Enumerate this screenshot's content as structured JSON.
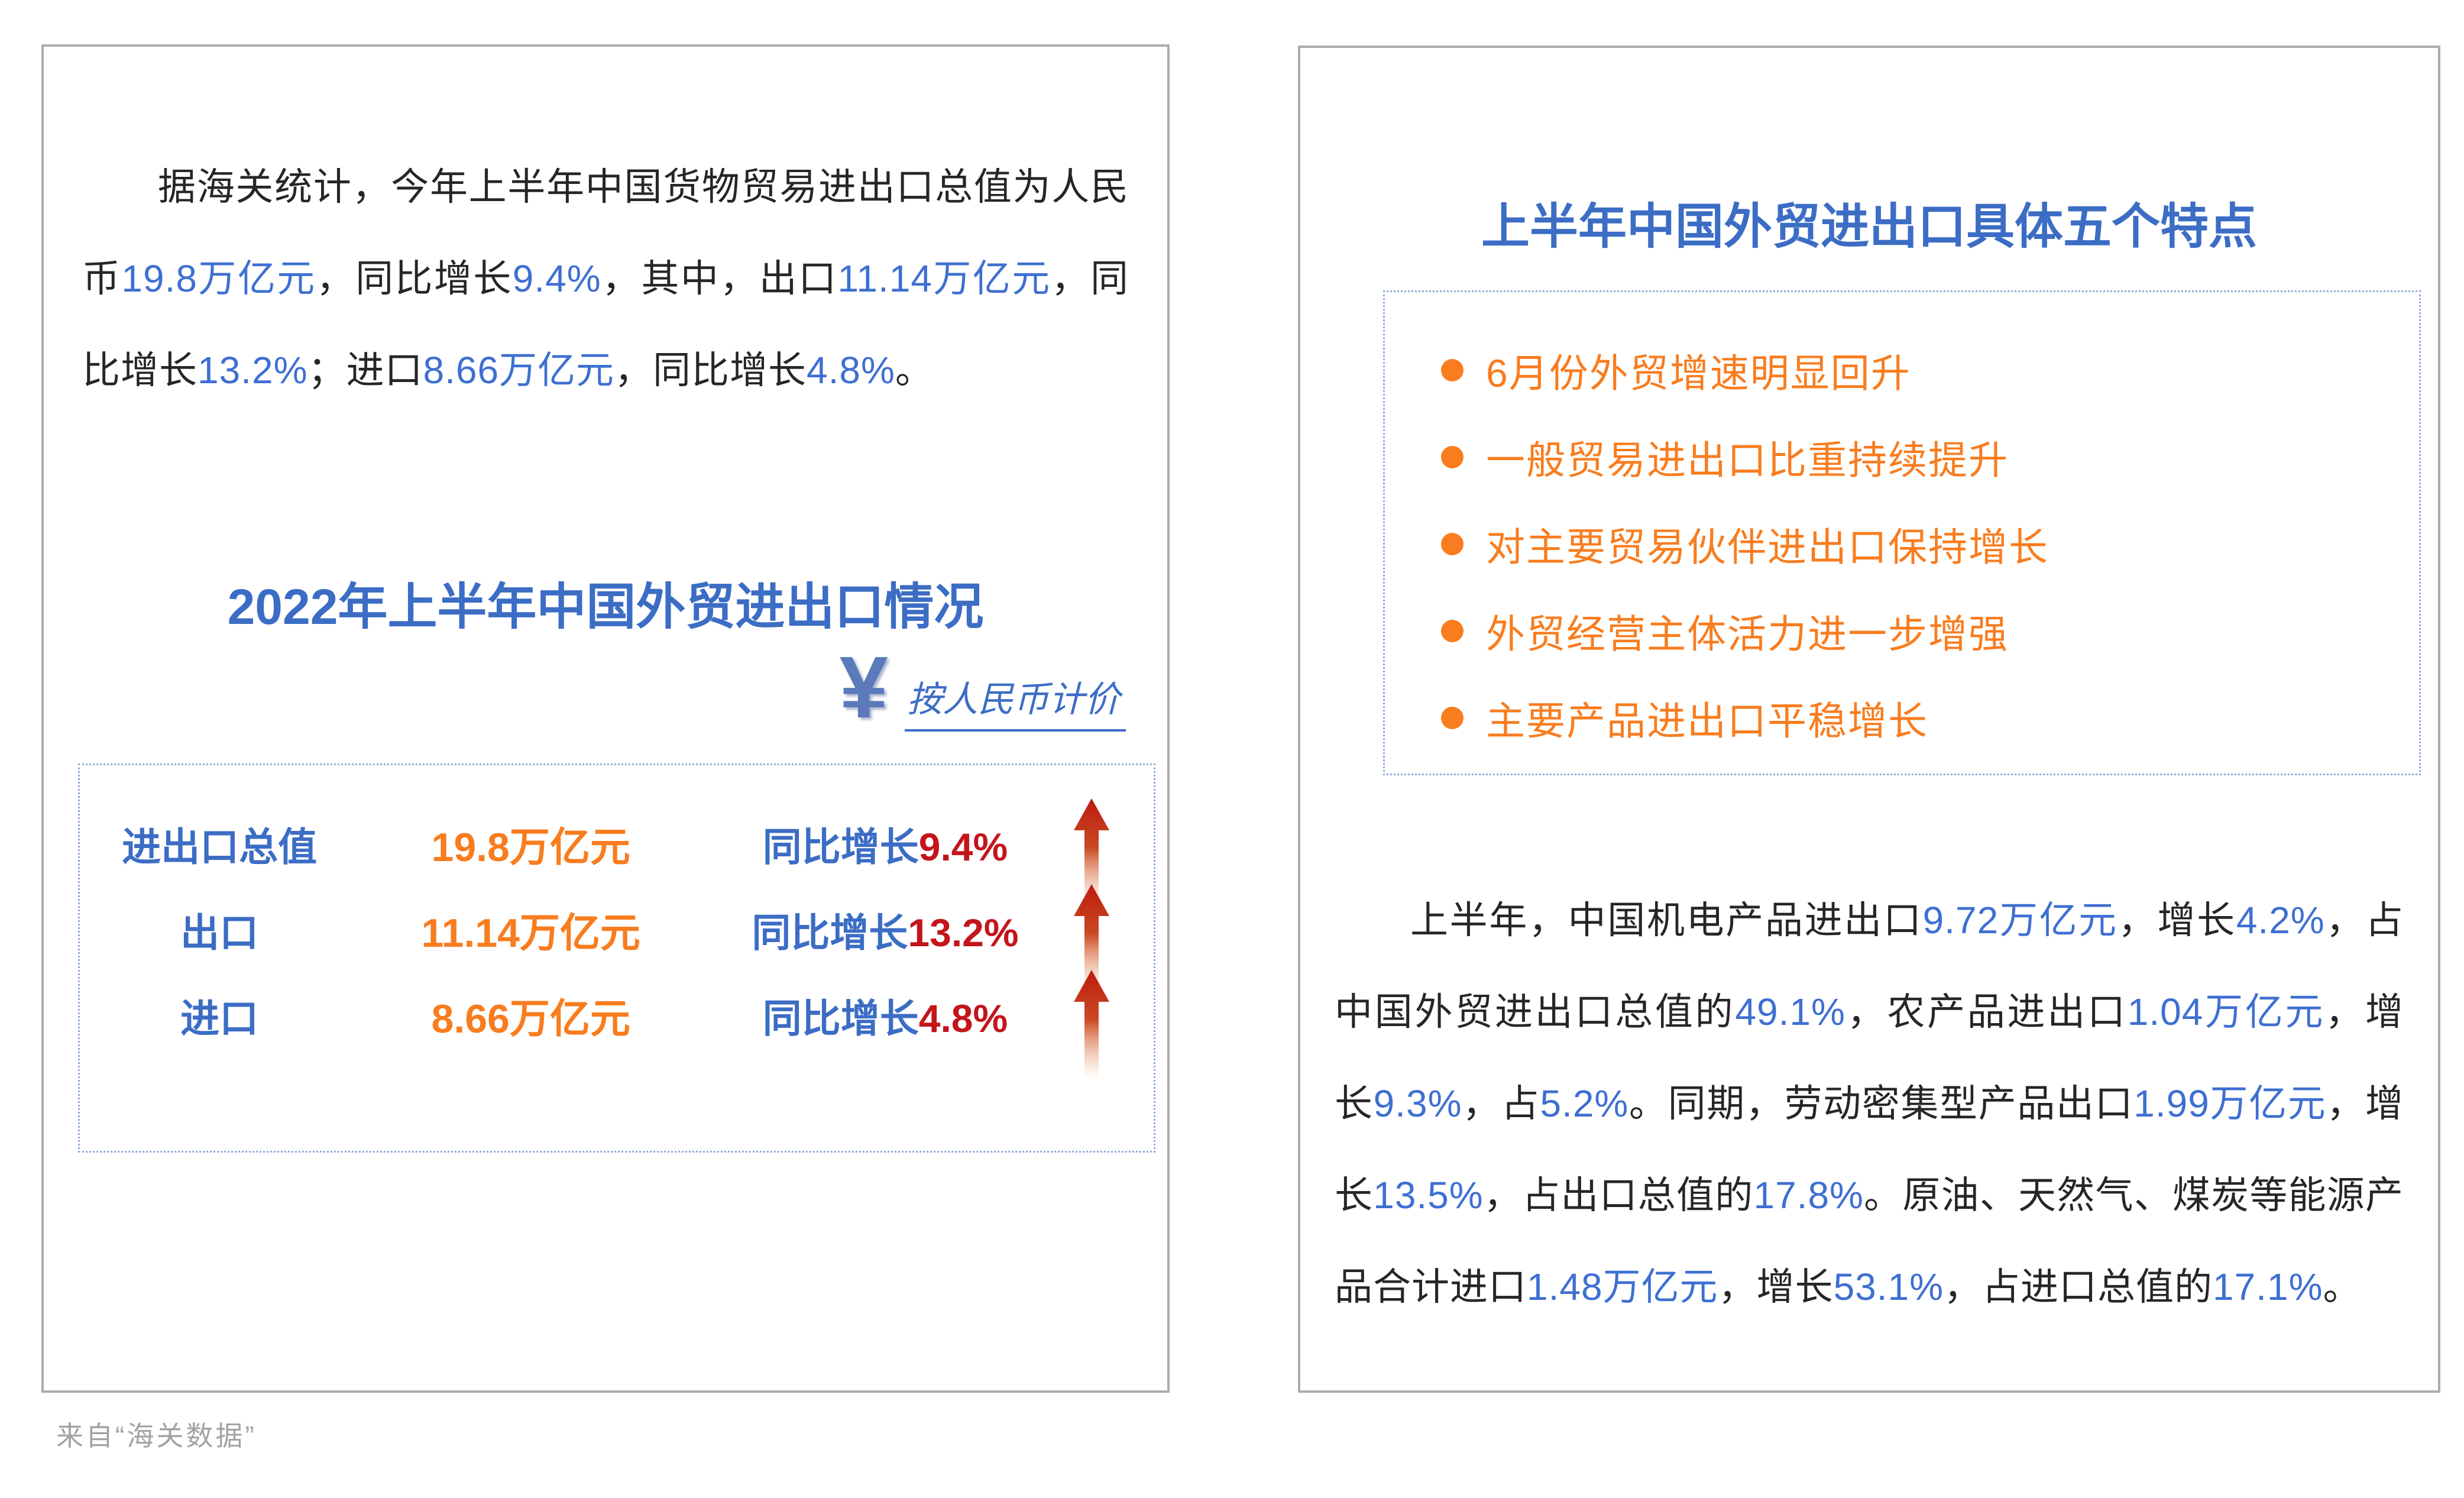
{
  "colors": {
    "accent_blue": "#3C6DC5",
    "number_blue": "#3E6FD2",
    "orange": "#F97C1E",
    "red": "#C3151B",
    "border_gray": "#ACACAC",
    "dotted_blue": "#8FA9DB",
    "text_dark": "#262626",
    "caption_gray": "#A2A2A2",
    "yen_blue": "#5C79B9"
  },
  "left_panel": {
    "intro_paragraph": [
      {
        "t": "据海关统计，今年上半年中国货物贸易进出口总值为人民币"
      },
      {
        "t": "19.8万亿元",
        "c": "hl"
      },
      {
        "t": "，同比增长"
      },
      {
        "t": "9.4%",
        "c": "hl"
      },
      {
        "t": "，其中，出口"
      },
      {
        "t": "11.14万亿元",
        "c": "hl"
      },
      {
        "t": "，同比增长"
      },
      {
        "t": "13.2%",
        "c": "hl"
      },
      {
        "t": "；进口"
      },
      {
        "t": "8.66万亿元",
        "c": "hl"
      },
      {
        "t": "，同比增长"
      },
      {
        "t": "4.8%",
        "c": "hl"
      },
      {
        "t": "。"
      }
    ],
    "title": "2022年上半年中国外贸进出口情况",
    "currency_symbol": "¥",
    "currency_note": "按人民币计价",
    "table": {
      "rows": [
        {
          "label": "进出口总值",
          "value": "19.8万亿元",
          "growth_prefix": "同比增长",
          "growth_value": "9.4%"
        },
        {
          "label": "出口",
          "value": "11.14万亿元",
          "growth_prefix": "同比增长",
          "growth_value": "13.2%"
        },
        {
          "label": "进口",
          "value": "8.66万亿元",
          "growth_prefix": "同比增长",
          "growth_value": "4.8%"
        }
      ]
    }
  },
  "right_panel": {
    "title": "上半年中国外贸进出口具体五个特点",
    "bullets": [
      "6月份外贸增速明显回升",
      "一般贸易进出口比重持续提升",
      "对主要贸易伙伴进出口保持增长",
      "外贸经营主体活力进一步增强",
      "主要产品进出口平稳增长"
    ],
    "detail_paragraph": [
      {
        "t": "上半年，中国机电产品进出口"
      },
      {
        "t": "9.72万亿元",
        "c": "hl"
      },
      {
        "t": "，增长"
      },
      {
        "t": "4.2%",
        "c": "hl"
      },
      {
        "t": "，占中国外贸进出口总值的"
      },
      {
        "t": "49.1%",
        "c": "hl"
      },
      {
        "t": "，农产品进出口"
      },
      {
        "t": "1.04万亿元",
        "c": "hl"
      },
      {
        "t": "，增长"
      },
      {
        "t": "9.3%",
        "c": "hl"
      },
      {
        "t": "，占"
      },
      {
        "t": "5.2%",
        "c": "hl"
      },
      {
        "t": "。同期，劳动密集型产品出口"
      },
      {
        "t": "1.99万亿元",
        "c": "hl"
      },
      {
        "t": "，增长"
      },
      {
        "t": "13.5%",
        "c": "hl"
      },
      {
        "t": "，占出口总值的"
      },
      {
        "t": "17.8%",
        "c": "hl"
      },
      {
        "t": "。原油、天然气、煤炭等能源产品合计进口"
      },
      {
        "t": "1.48万亿元",
        "c": "hl"
      },
      {
        "t": "，增长"
      },
      {
        "t": "53.1%",
        "c": "hl"
      },
      {
        "t": "，占进口总值的"
      },
      {
        "t": "17.1%",
        "c": "hl"
      },
      {
        "t": "。"
      }
    ]
  },
  "footer": {
    "source_note": "来自“海关数据”"
  }
}
